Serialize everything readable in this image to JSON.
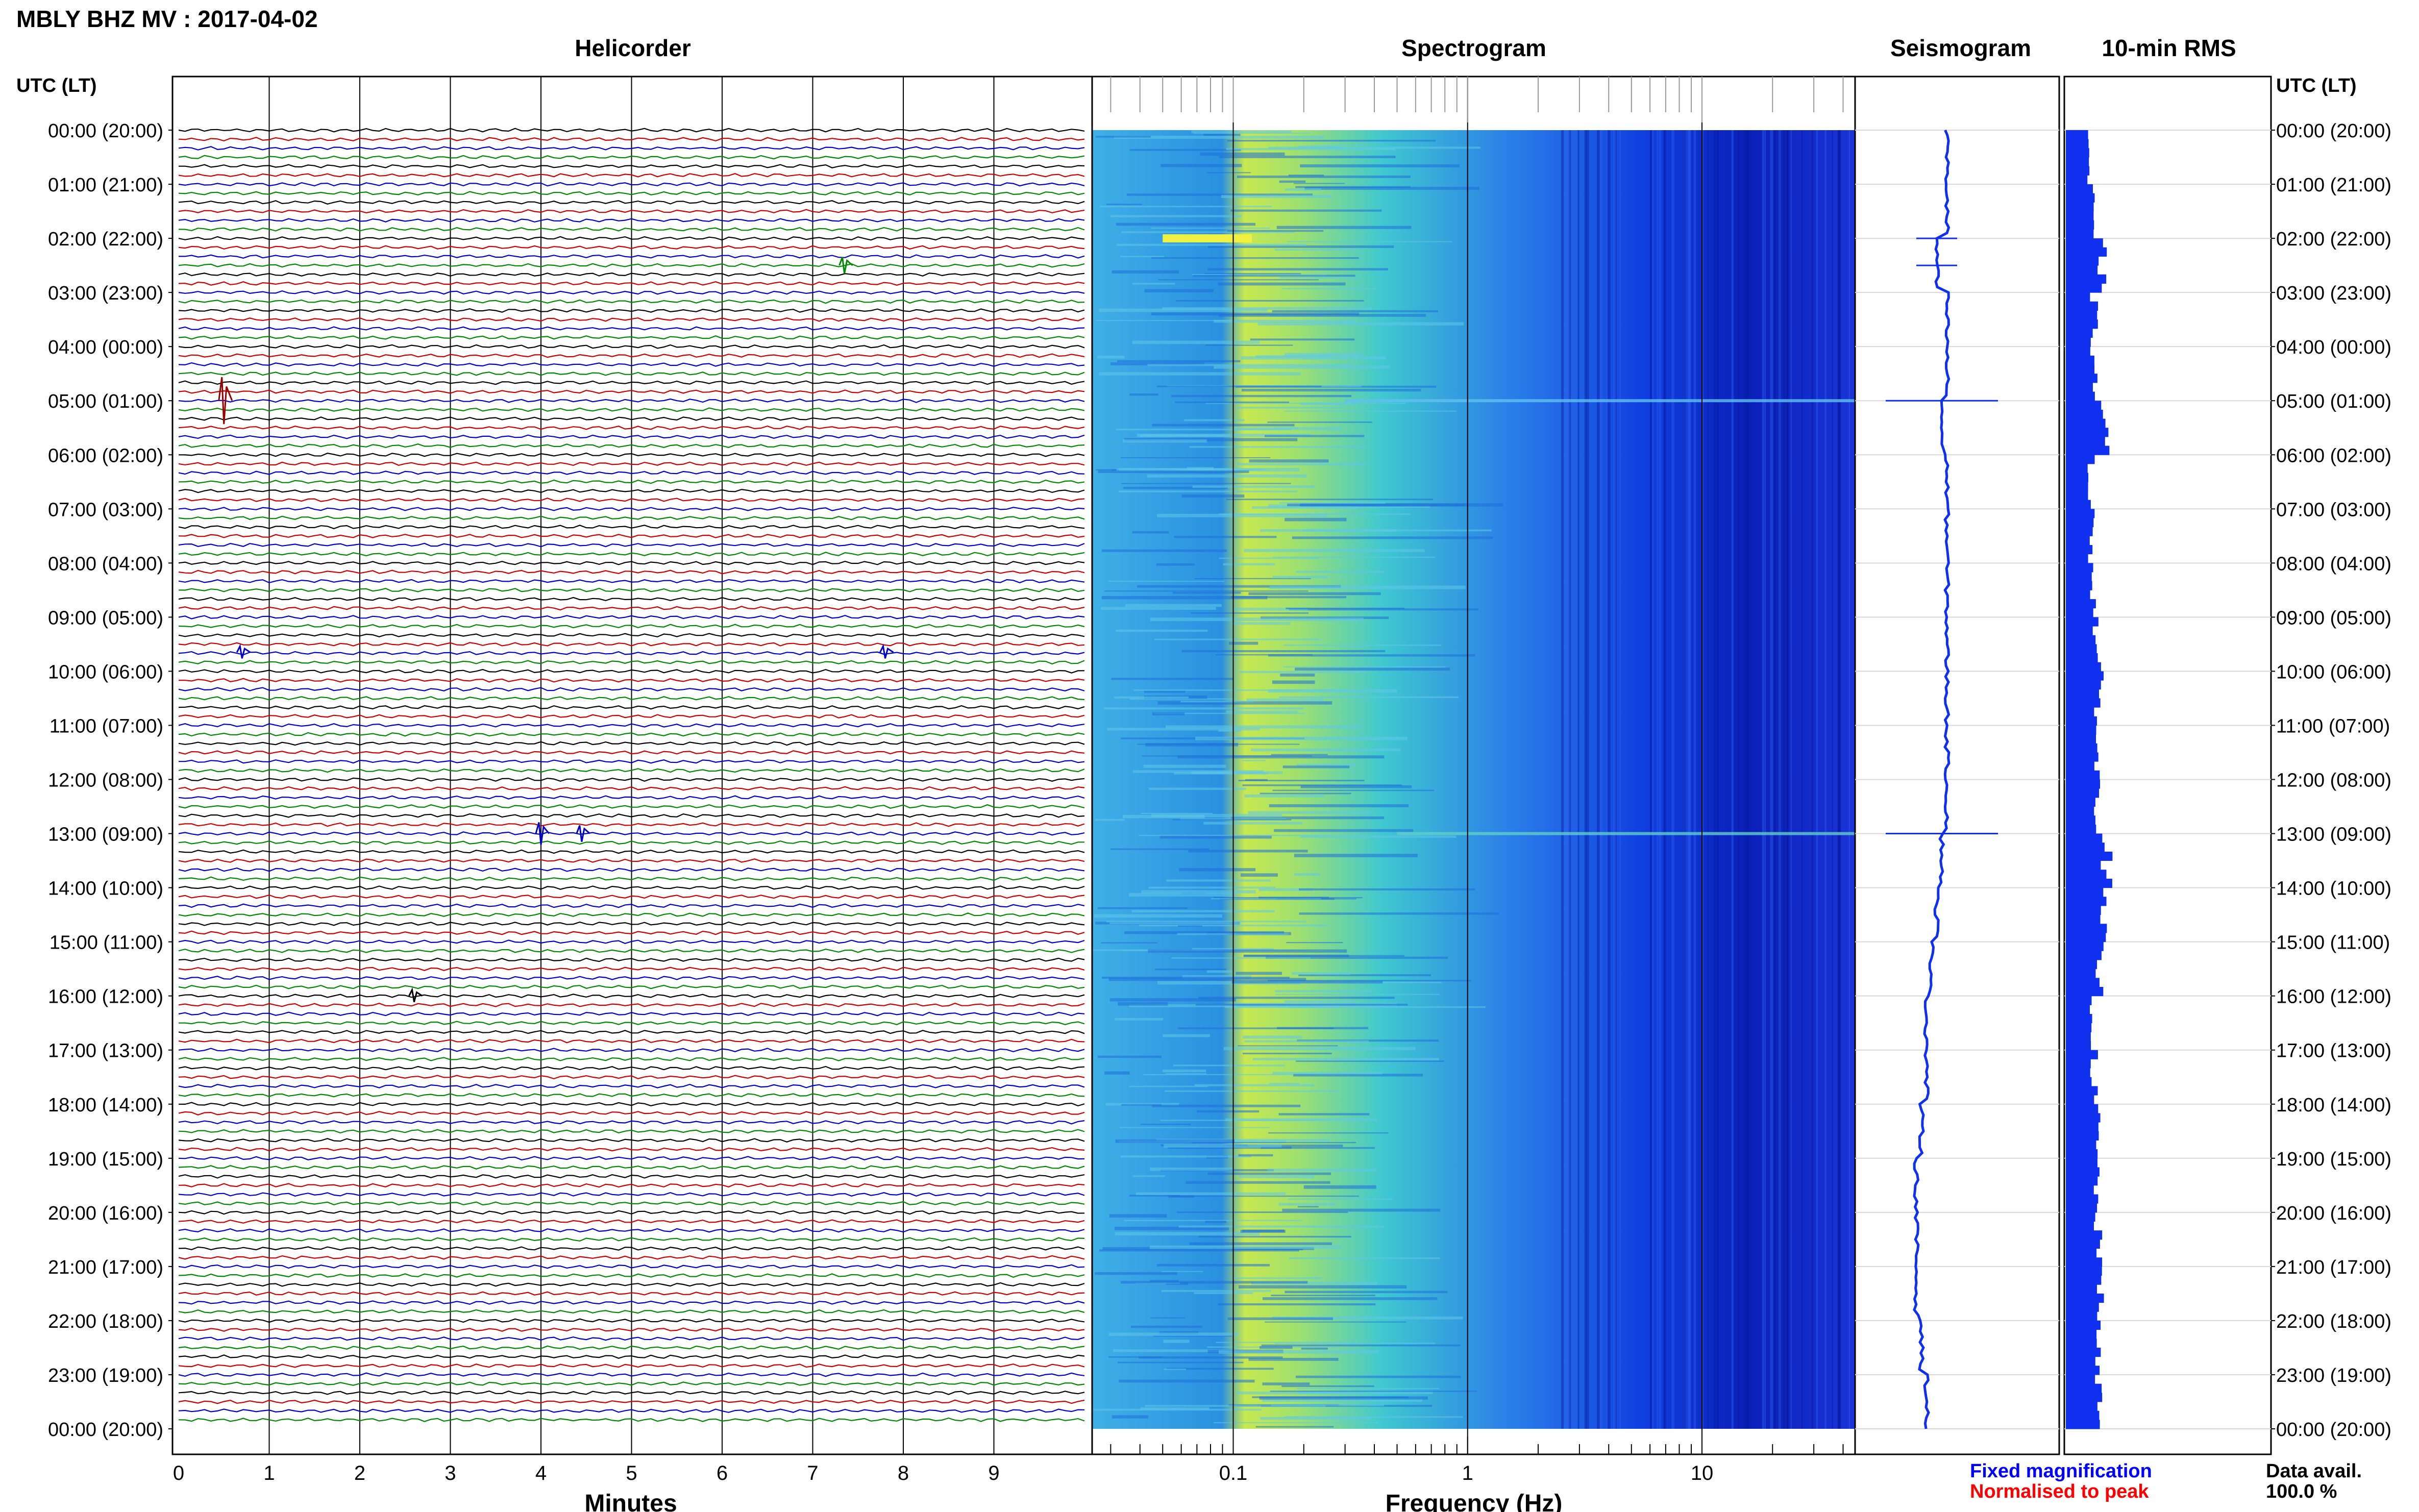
{
  "header": {
    "title": "MBLY BHZ MV : 2017-04-02"
  },
  "panels": {
    "helicorder": "Helicorder",
    "spectrogram": "Spectrogram",
    "seismogram": "Seismogram",
    "rms": "10-min RMS"
  },
  "axis_labels": {
    "time_left": "UTC (LT)",
    "time_right": "UTC (LT)",
    "helicorder_x": "Minutes",
    "spectrogram_x": "Frequency (Hz)"
  },
  "legend": {
    "fixed": "Fixed magnification",
    "normalised": "Normalised to peak",
    "fixed_color": "#0000ff",
    "normalised_color": "#ff0000"
  },
  "data_avail": {
    "label": "Data avail.",
    "value": "100.0 %"
  },
  "colors": {
    "trace_cycle": [
      "#000000",
      "#cc0000",
      "#0000cc",
      "#008800"
    ]
  },
  "chart_data": {
    "type": "heatmap",
    "time_ticks": [
      "00:00 (20:00)",
      "01:00 (21:00)",
      "02:00 (22:00)",
      "03:00 (23:00)",
      "04:00 (00:00)",
      "05:00 (01:00)",
      "06:00 (02:00)",
      "07:00 (03:00)",
      "08:00 (04:00)",
      "09:00 (05:00)",
      "10:00 (06:00)",
      "11:00 (07:00)",
      "12:00 (08:00)",
      "13:00 (09:00)",
      "14:00 (10:00)",
      "15:00 (11:00)",
      "16:00 (12:00)",
      "17:00 (13:00)",
      "18:00 (14:00)",
      "19:00 (15:00)",
      "20:00 (16:00)",
      "21:00 (17:00)",
      "22:00 (18:00)",
      "23:00 (19:00)",
      "00:00 (20:00)"
    ],
    "helicorder_x_ticks": [
      "0",
      "1",
      "2",
      "3",
      "4",
      "5",
      "6",
      "7",
      "8",
      "9"
    ],
    "helicorder_xlim": [
      0,
      10
    ],
    "spectrogram_x_ticks": [
      "0.1",
      "1",
      "10"
    ],
    "spectrogram_xlim": [
      0.025,
      45
    ],
    "events_hours": [
      2.0,
      2.5,
      5.0,
      13.0
    ],
    "rms_hourly": [
      0.45,
      0.5,
      0.7,
      0.55,
      0.55,
      0.75,
      0.5,
      0.5,
      0.55,
      0.6,
      0.65,
      0.6,
      0.65,
      0.8,
      0.7,
      0.65,
      0.55,
      0.55,
      0.6,
      0.6,
      0.62,
      0.7,
      0.6,
      0.65
    ],
    "seismogram_offset_hourly": [
      0.5,
      0.5,
      0.4,
      0.5,
      0.5,
      0.45,
      0.5,
      0.5,
      0.5,
      0.5,
      0.5,
      0.5,
      0.5,
      0.45,
      0.4,
      0.35,
      0.3,
      0.3,
      0.25,
      0.2,
      0.2,
      0.2,
      0.25,
      0.3
    ]
  }
}
